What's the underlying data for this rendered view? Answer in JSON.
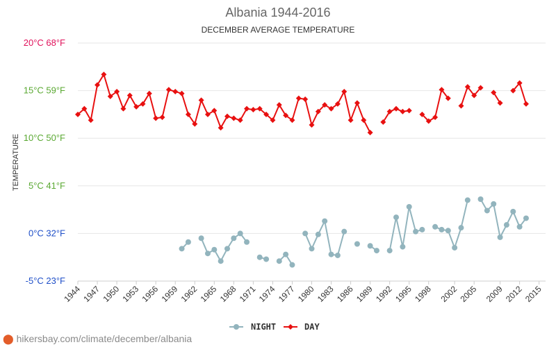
{
  "chart_data": {
    "type": "line",
    "title": "Albania 1944-2016",
    "subtitle": "DECEMBER AVERAGE TEMPERATURE",
    "ylabel": "TEMPERATURE",
    "xlabel": "",
    "ylim": [
      -5,
      20
    ],
    "xlim": [
      1944,
      2016
    ],
    "grid": true,
    "legend_position": "bottom",
    "y_ticks": [
      {
        "value": 20,
        "label": "20°C 68°F",
        "color": "#e0105a"
      },
      {
        "value": 15,
        "label": "15°C 59°F",
        "color": "#5aa832"
      },
      {
        "value": 10,
        "label": "10°C 50°F",
        "color": "#5aa832"
      },
      {
        "value": 5,
        "label": "5°C 41°F",
        "color": "#5aa832"
      },
      {
        "value": 0,
        "label": "0°C 32°F",
        "color": "#1f4fc8"
      },
      {
        "value": -5,
        "label": "-5°C 23°F",
        "color": "#1f4fc8"
      }
    ],
    "x_tick_labels": [
      "1944",
      "1947",
      "1950",
      "1953",
      "1956",
      "1959",
      "1962",
      "1965",
      "1968",
      "1971",
      "1974",
      "1977",
      "1980",
      "1983",
      "1986",
      "1989",
      "1992",
      "1995",
      "1998",
      "2002",
      "2005",
      "2009",
      "2012",
      "2015"
    ],
    "series": [
      {
        "name": "NIGHT",
        "color": "#92b4bd",
        "marker": "circle",
        "points": [
          [
            1960,
            -1.6
          ],
          [
            1961,
            -0.9
          ],
          [
            1963,
            -0.5
          ],
          [
            1964,
            -2.1
          ],
          [
            1965,
            -1.7
          ],
          [
            1966,
            -2.9
          ],
          [
            1967,
            -1.6
          ],
          [
            1968,
            -0.5
          ],
          [
            1969,
            0.0
          ],
          [
            1970,
            -0.9
          ],
          [
            1972,
            -2.5
          ],
          [
            1973,
            -2.7
          ],
          [
            1975,
            -2.9
          ],
          [
            1976,
            -2.2
          ],
          [
            1977,
            -3.3
          ],
          [
            1979,
            0.0
          ],
          [
            1980,
            -1.6
          ],
          [
            1981,
            -0.1
          ],
          [
            1982,
            1.3
          ],
          [
            1983,
            -2.2
          ],
          [
            1984,
            -2.3
          ],
          [
            1985,
            0.2
          ],
          [
            1987,
            -1.1
          ],
          [
            1989,
            -1.3
          ],
          [
            1990,
            -1.8
          ],
          [
            1992,
            -1.8
          ],
          [
            1993,
            1.7
          ],
          [
            1994,
            -1.4
          ],
          [
            1995,
            2.8
          ],
          [
            1996,
            0.2
          ],
          [
            1997,
            0.4
          ],
          [
            1999,
            0.7
          ],
          [
            2000,
            0.4
          ],
          [
            2001,
            0.3
          ],
          [
            2002,
            -1.5
          ],
          [
            2003,
            0.6
          ],
          [
            2004,
            3.5
          ],
          [
            2006,
            3.6
          ],
          [
            2007,
            2.4
          ],
          [
            2008,
            3.1
          ],
          [
            2009,
            -0.4
          ],
          [
            2010,
            0.9
          ],
          [
            2011,
            2.3
          ],
          [
            2012,
            0.7
          ],
          [
            2013,
            1.6
          ]
        ]
      },
      {
        "name": "DAY",
        "color": "#e81010",
        "marker": "diamond",
        "points": [
          [
            1944,
            12.5
          ],
          [
            1945,
            13.1
          ],
          [
            1946,
            11.9
          ],
          [
            1947,
            15.6
          ],
          [
            1948,
            16.7
          ],
          [
            1949,
            14.4
          ],
          [
            1950,
            14.9
          ],
          [
            1951,
            13.1
          ],
          [
            1952,
            14.5
          ],
          [
            1953,
            13.3
          ],
          [
            1954,
            13.6
          ],
          [
            1955,
            14.7
          ],
          [
            1956,
            12.1
          ],
          [
            1957,
            12.2
          ],
          [
            1958,
            15.1
          ],
          [
            1959,
            14.9
          ],
          [
            1960,
            14.7
          ],
          [
            1961,
            12.5
          ],
          [
            1962,
            11.5
          ],
          [
            1963,
            14.0
          ],
          [
            1964,
            12.5
          ],
          [
            1965,
            12.9
          ],
          [
            1966,
            11.1
          ],
          [
            1967,
            12.3
          ],
          [
            1968,
            12.1
          ],
          [
            1969,
            11.9
          ],
          [
            1970,
            13.1
          ],
          [
            1971,
            13.0
          ],
          [
            1972,
            13.1
          ],
          [
            1973,
            12.5
          ],
          [
            1974,
            11.9
          ],
          [
            1975,
            13.5
          ],
          [
            1976,
            12.4
          ],
          [
            1977,
            11.9
          ],
          [
            1978,
            14.2
          ],
          [
            1979,
            14.1
          ],
          [
            1980,
            11.4
          ],
          [
            1981,
            12.8
          ],
          [
            1982,
            13.5
          ],
          [
            1983,
            13.1
          ],
          [
            1984,
            13.6
          ],
          [
            1985,
            14.9
          ],
          [
            1986,
            11.9
          ],
          [
            1987,
            13.7
          ],
          [
            1988,
            11.9
          ],
          [
            1989,
            10.6
          ],
          [
            1991,
            11.7
          ],
          [
            1992,
            12.8
          ],
          [
            1993,
            13.1
          ],
          [
            1994,
            12.8
          ],
          [
            1995,
            12.9
          ],
          [
            1997,
            12.5
          ],
          [
            1998,
            11.8
          ],
          [
            1999,
            12.2
          ],
          [
            2000,
            15.1
          ],
          [
            2001,
            14.2
          ],
          [
            2003,
            13.4
          ],
          [
            2004,
            15.4
          ],
          [
            2005,
            14.5
          ],
          [
            2006,
            15.3
          ],
          [
            2008,
            14.8
          ],
          [
            2009,
            13.7
          ],
          [
            2011,
            15.0
          ],
          [
            2012,
            15.8
          ],
          [
            2013,
            13.6
          ]
        ]
      }
    ]
  },
  "watermark": "hikersbay.com/climate/december/albania"
}
